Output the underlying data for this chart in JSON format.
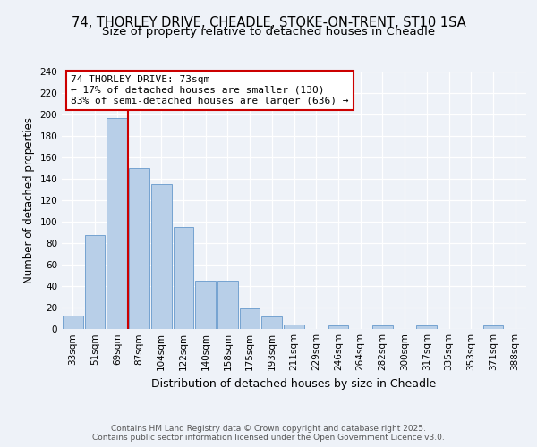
{
  "title1": "74, THORLEY DRIVE, CHEADLE, STOKE-ON-TRENT, ST10 1SA",
  "title2": "Size of property relative to detached houses in Cheadle",
  "xlabel": "Distribution of detached houses by size in Cheadle",
  "ylabel": "Number of detached properties",
  "categories": [
    "33sqm",
    "51sqm",
    "69sqm",
    "87sqm",
    "104sqm",
    "122sqm",
    "140sqm",
    "158sqm",
    "175sqm",
    "193sqm",
    "211sqm",
    "229sqm",
    "246sqm",
    "264sqm",
    "282sqm",
    "300sqm",
    "317sqm",
    "335sqm",
    "353sqm",
    "371sqm",
    "388sqm"
  ],
  "values": [
    12,
    87,
    197,
    150,
    135,
    95,
    45,
    45,
    19,
    11,
    4,
    0,
    3,
    0,
    3,
    0,
    3,
    0,
    0,
    3,
    0
  ],
  "bar_color": "#b8cfe8",
  "bar_edge_color": "#6699cc",
  "red_line_index": 2,
  "annotation_text": "74 THORLEY DRIVE: 73sqm\n← 17% of detached houses are smaller (130)\n83% of semi-detached houses are larger (636) →",
  "annotation_box_color": "#ffffff",
  "annotation_box_edge_color": "#cc0000",
  "red_line_color": "#cc0000",
  "ylim": [
    0,
    240
  ],
  "yticks": [
    0,
    20,
    40,
    60,
    80,
    100,
    120,
    140,
    160,
    180,
    200,
    220,
    240
  ],
  "footnote": "Contains HM Land Registry data © Crown copyright and database right 2025.\nContains public sector information licensed under the Open Government Licence v3.0.",
  "background_color": "#eef2f8",
  "grid_color": "#ffffff",
  "title_fontsize": 10.5,
  "subtitle_fontsize": 9.5,
  "ylabel_fontsize": 8.5,
  "xlabel_fontsize": 9,
  "annotation_fontsize": 8,
  "tick_fontsize": 7.5,
  "footnote_fontsize": 6.5,
  "bar_width": 0.92
}
